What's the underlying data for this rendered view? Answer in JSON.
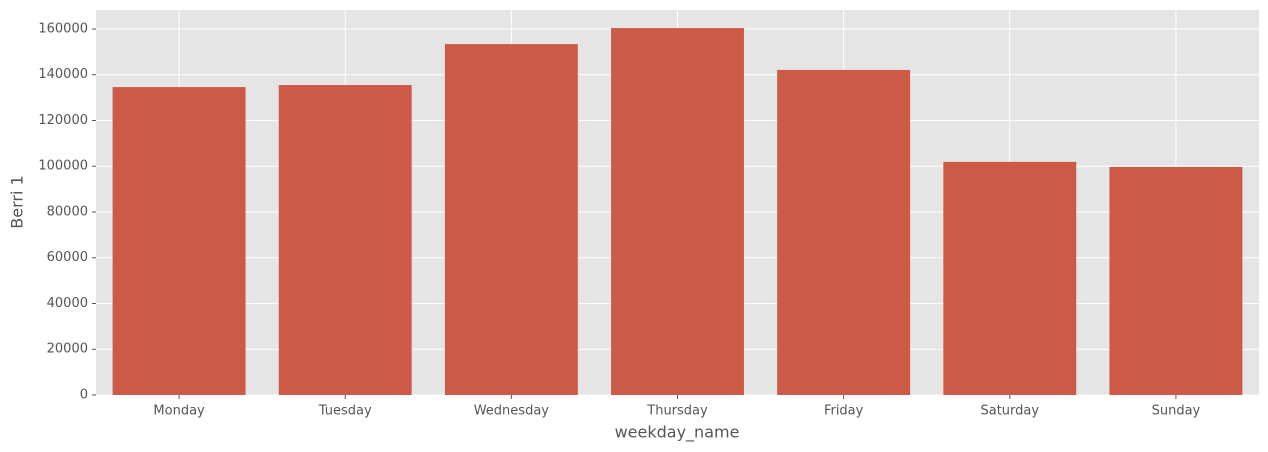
{
  "chart_data": {
    "type": "bar",
    "x_label": "weekday_name",
    "y_label": "Berri 1",
    "categories": [
      "Monday",
      "Tuesday",
      "Wednesday",
      "Thursday",
      "Friday",
      "Saturday",
      "Sunday"
    ],
    "values": [
      134600,
      135500,
      153400,
      160400,
      142100,
      101900,
      99700
    ],
    "color": "#cc5a47",
    "ylim": [
      0,
      168300
    ],
    "yticks": [
      0,
      20000,
      40000,
      60000,
      80000,
      100000,
      120000,
      140000,
      160000
    ],
    "grid": true
  }
}
